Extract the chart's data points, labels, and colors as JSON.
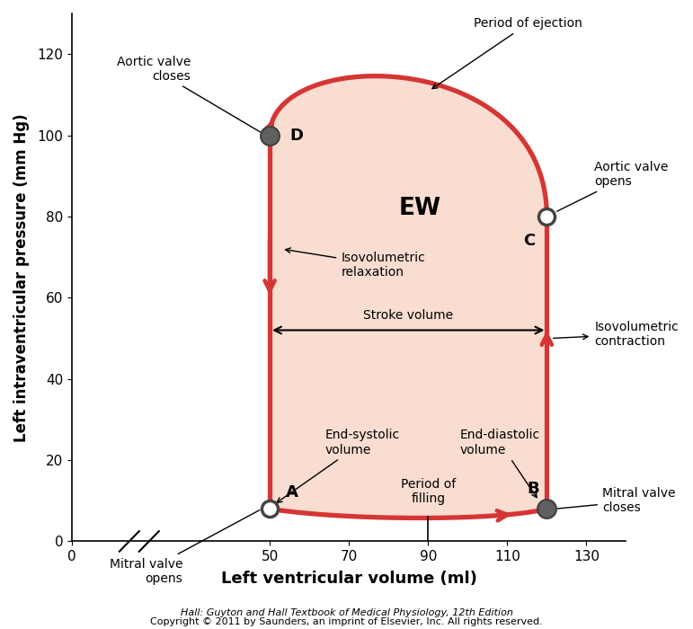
{
  "xlabel": "Left ventricular volume (ml)",
  "ylabel": "Left intraventricular pressure (mm Hg)",
  "xlim": [
    0,
    140
  ],
  "ylim": [
    0,
    130
  ],
  "xticks": [
    0,
    50,
    70,
    90,
    110,
    130
  ],
  "yticks": [
    0,
    20,
    40,
    60,
    80,
    100,
    120
  ],
  "background_color": "#ffffff",
  "fill_color": "#f8ddd0",
  "loop_color": "#d63535",
  "loop_linewidth": 3.8,
  "point_A": [
    50,
    8
  ],
  "point_B": [
    120,
    8
  ],
  "point_C": [
    120,
    80
  ],
  "point_D": [
    50,
    100
  ],
  "footer_line1": "Hall: Guyton and Hall Textbook of Medical Physiology, 12th Edition",
  "footer_line2": "Copyright © 2011 by Saunders, an imprint of Elsevier, Inc. All rights reserved."
}
